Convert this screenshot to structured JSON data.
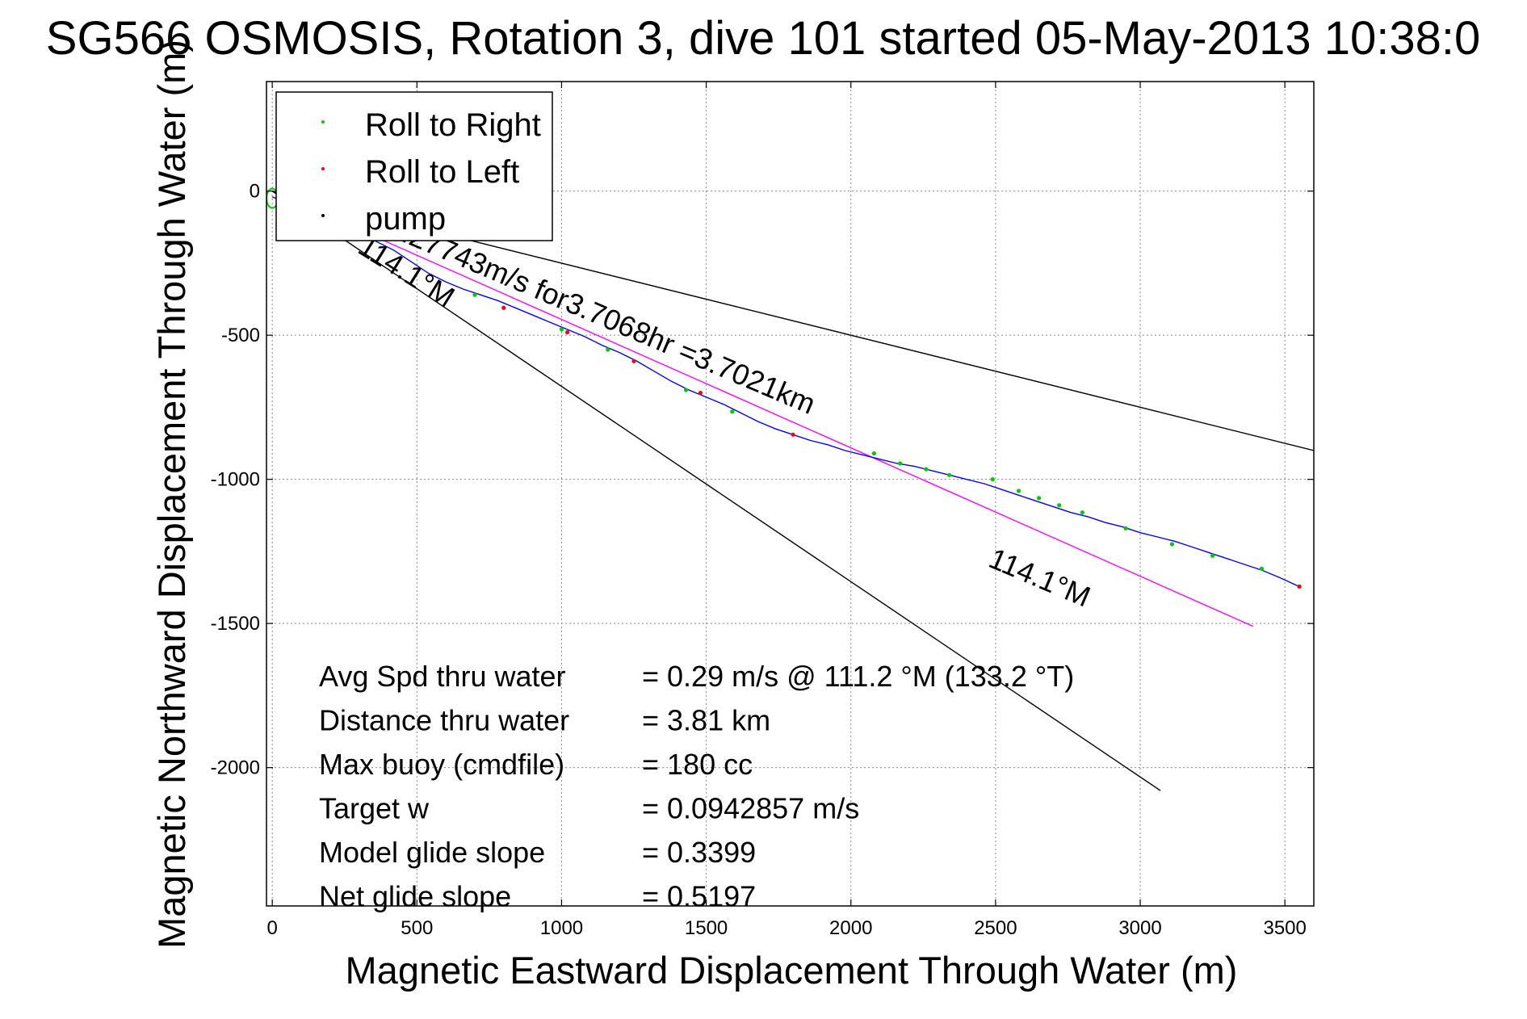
{
  "chart_data": {
    "type": "line",
    "title": "SG566 OSMOSIS, Rotation 3, dive 101 started 05-May-2013 10:38:0",
    "xlabel": "Magnetic Eastward Displacement Through Water (m)",
    "ylabel": "Magnetic Northward Displacement Through Water (m)",
    "xlim": [
      -20,
      3600
    ],
    "ylim": [
      -2480,
      380
    ],
    "xticks": [
      0,
      500,
      1000,
      1500,
      2000,
      2500,
      3000,
      3500
    ],
    "yticks": [
      -2000,
      -1500,
      -1000,
      -500,
      0
    ],
    "grid": true,
    "legend": {
      "position": "top-left",
      "entries": [
        {
          "label": "Roll to Right",
          "color": "#00cc00"
        },
        {
          "label": "Roll to Left",
          "color": "#ff0000"
        },
        {
          "label": "pump",
          "color": "#000000"
        }
      ]
    },
    "track": {
      "color": "#0000ff",
      "x": [
        0,
        60,
        120,
        180,
        240,
        300,
        360,
        420,
        480,
        540,
        600,
        660,
        720,
        780,
        840,
        900,
        960,
        1020,
        1080,
        1140,
        1200,
        1260,
        1320,
        1380,
        1440,
        1500,
        1560,
        1620,
        1680,
        1740,
        1800,
        1860,
        1920,
        1980,
        2040,
        2100,
        2160,
        2220,
        2280,
        2340,
        2400,
        2460,
        2520,
        2580,
        2640,
        2700,
        2760,
        2820,
        2880,
        2940,
        3000,
        3060,
        3120,
        3180,
        3240,
        3300,
        3360,
        3420,
        3480,
        3550
      ],
      "y": [
        -20,
        -45,
        -70,
        -95,
        -120,
        -150,
        -175,
        -205,
        -245,
        -285,
        -315,
        -340,
        -360,
        -380,
        -405,
        -430,
        -455,
        -480,
        -505,
        -535,
        -560,
        -590,
        -625,
        -660,
        -690,
        -715,
        -740,
        -770,
        -800,
        -825,
        -845,
        -865,
        -880,
        -900,
        -915,
        -930,
        -945,
        -955,
        -970,
        -985,
        -1000,
        -1015,
        -1035,
        -1055,
        -1075,
        -1095,
        -1115,
        -1130,
        -1150,
        -1165,
        -1185,
        -1200,
        -1215,
        -1235,
        -1255,
        -1275,
        -1295,
        -1315,
        -1340,
        -1372
      ]
    },
    "roll_right_points": {
      "color": "#00cc00",
      "x": [
        700,
        1000,
        1160,
        1430,
        1590,
        2080,
        2170,
        2260,
        2340,
        2490,
        2580,
        2650,
        2720,
        2800,
        2950,
        3110,
        3250,
        3420,
        3550
      ],
      "y": [
        -360,
        -480,
        -550,
        -690,
        -765,
        -910,
        -945,
        -965,
        -985,
        -1000,
        -1040,
        -1065,
        -1090,
        -1115,
        -1170,
        -1225,
        -1265,
        -1310,
        -1372
      ]
    },
    "roll_left_points": {
      "color": "#ff0000",
      "x": [
        800,
        1020,
        1250,
        1480,
        1800,
        3550
      ],
      "y": [
        -405,
        -490,
        -590,
        -700,
        -845,
        -1372
      ]
    },
    "start_marker": {
      "x": 0,
      "y": -25,
      "color": "#00cc00"
    },
    "reference_lines": [
      {
        "name": "target-heading-line",
        "color": "#ff00ff",
        "x": [
          0,
          3390
        ],
        "y": [
          0,
          -1510
        ]
      },
      {
        "name": "lower-bound-line",
        "color": "#000000",
        "x": [
          0,
          3070
        ],
        "y": [
          0,
          -2080
        ]
      },
      {
        "name": "upper-bound-line",
        "color": "#000000",
        "x": [
          0,
          3600
        ],
        "y": [
          0,
          -900
        ]
      }
    ],
    "line_labels": [
      {
        "text": "0.27743m/s for3.7068hr =3.7021km",
        "x": 390,
        "y": -150,
        "angle": 23
      },
      {
        "text": "114.1°M",
        "x": 290,
        "y": -210,
        "angle": 32
      },
      {
        "text": "114.1°M",
        "x": 2470,
        "y": -1300,
        "angle": 23
      }
    ],
    "annotations": [
      {
        "label": "Avg Spd thru water",
        "value": "=  0.29 m/s @ 111.2 °M (133.2 °T)"
      },
      {
        "label": "Distance thru water",
        "value": "=  3.81 km"
      },
      {
        "label": "Max buoy (cmdfile)",
        "value": "= 180 cc"
      },
      {
        "label": "Target w",
        "value": "= 0.0942857 m/s"
      },
      {
        "label": "Model glide slope",
        "value": "= 0.3399"
      },
      {
        "label": "Net glide slope",
        "value": "= 0.5197"
      }
    ]
  }
}
